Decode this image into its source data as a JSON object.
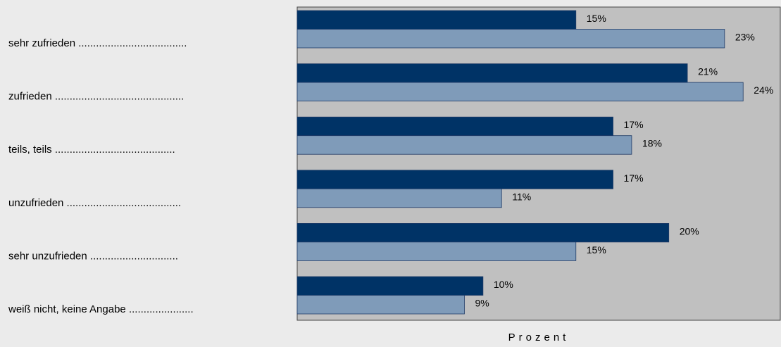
{
  "chart_data": {
    "type": "bar",
    "orientation": "horizontal",
    "categories": [
      "sehr zufrieden .....................................",
      "zufrieden ............................................",
      "teils, teils .........................................",
      "unzufrieden .......................................",
      "sehr unzufrieden ..............................",
      "weiß nicht, keine Angabe ......................"
    ],
    "series": [
      {
        "color": "#003366",
        "values": [
          15,
          21,
          17,
          17,
          20,
          10
        ],
        "value_labels": [
          "15%",
          "21%",
          "17%",
          "17%",
          "20%",
          "10%"
        ]
      },
      {
        "color": "#7f9bb9",
        "values": [
          23,
          24,
          18,
          11,
          15,
          9
        ],
        "value_labels": [
          "23%",
          "24%",
          "18%",
          "11%",
          "15%",
          "9%"
        ]
      }
    ],
    "xlim": [
      0,
      26
    ],
    "x_label": "Prozent"
  }
}
